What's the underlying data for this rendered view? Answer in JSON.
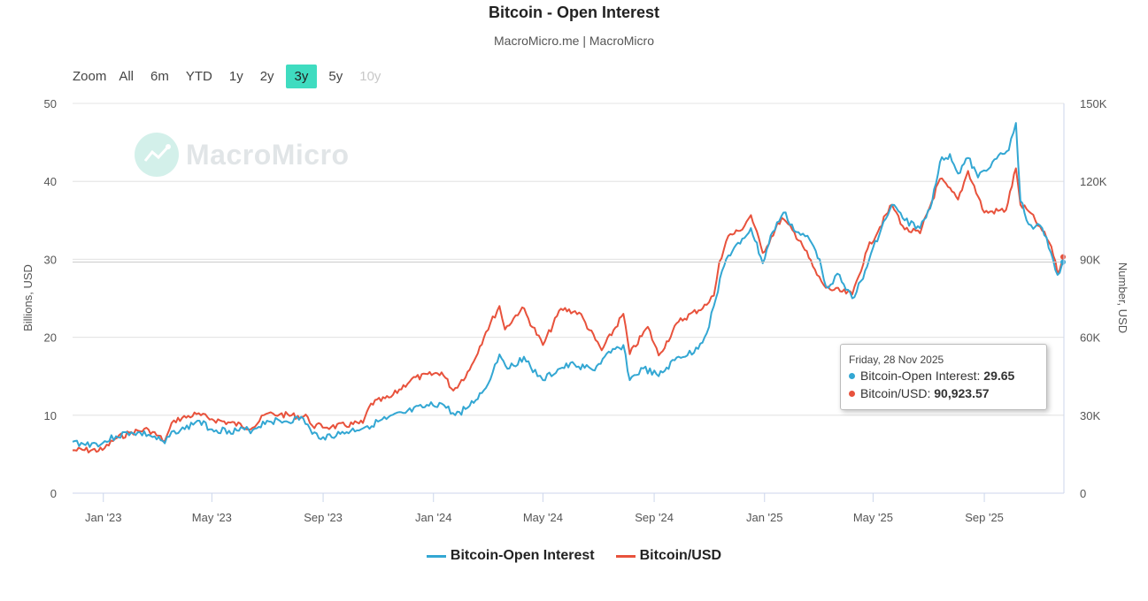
{
  "header": {
    "title": "Bitcoin - Open Interest",
    "subtitle": "MacroMicro.me | MacroMicro"
  },
  "zoom": {
    "label": "Zoom",
    "buttons": [
      {
        "label": "All",
        "state": "normal"
      },
      {
        "label": "6m",
        "state": "normal"
      },
      {
        "label": "YTD",
        "state": "normal"
      },
      {
        "label": "1y",
        "state": "normal"
      },
      {
        "label": "2y",
        "state": "normal"
      },
      {
        "label": "3y",
        "state": "active"
      },
      {
        "label": "5y",
        "state": "normal"
      },
      {
        "label": "10y",
        "state": "disabled"
      }
    ]
  },
  "watermark": {
    "text": "MacroMicro"
  },
  "tooltip": {
    "date": "Friday, 28 Nov 2025",
    "rows": [
      {
        "label": "Bitcoin-Open Interest:",
        "value": "29.65"
      },
      {
        "label": "Bitcoin/USD:",
        "value": "90,923.57"
      }
    ]
  },
  "colors": {
    "open_interest": "#33a7d3",
    "btc_usd": "#e8523c",
    "zoom_active": "#3fdcc0"
  },
  "chart_data": {
    "type": "line",
    "title": "Bitcoin - Open Interest",
    "left_axis": {
      "label": "Billions, USD",
      "min": 0,
      "max": 50,
      "ticks": [
        0,
        10,
        20,
        30,
        40,
        50
      ],
      "tick_labels": [
        "0",
        "10",
        "20",
        "30",
        "40",
        "50"
      ]
    },
    "right_axis": {
      "label": "Number, USD",
      "min": 0,
      "max": 150000,
      "ticks": [
        0,
        30000,
        60000,
        90000,
        120000,
        150000
      ],
      "tick_labels": [
        "0",
        "30K",
        "60K",
        "90K",
        "120K",
        "150K"
      ]
    },
    "x_range": [
      "2022-11-28",
      "2025-11-28"
    ],
    "x_ticks": [
      {
        "date": "2023-01-01",
        "label": "Jan '23"
      },
      {
        "date": "2023-05-01",
        "label": "May '23"
      },
      {
        "date": "2023-09-01",
        "label": "Sep '23"
      },
      {
        "date": "2024-01-01",
        "label": "Jan '24"
      },
      {
        "date": "2024-05-01",
        "label": "May '24"
      },
      {
        "date": "2024-09-01",
        "label": "Sep '24"
      },
      {
        "date": "2025-01-01",
        "label": "Jan '25"
      },
      {
        "date": "2025-05-01",
        "label": "May '25"
      },
      {
        "date": "2025-09-01",
        "label": "Sep '25"
      }
    ],
    "grid": true,
    "legend_position": "bottom",
    "series": [
      {
        "name": "Bitcoin-Open Interest",
        "axis": "left",
        "color": "#33a7d3",
        "points": [
          [
            "2022-11-28",
            6.6
          ],
          [
            "2022-12-10",
            6.3
          ],
          [
            "2022-12-31",
            6.4
          ],
          [
            "2023-01-15",
            7.3
          ],
          [
            "2023-02-01",
            7.8
          ],
          [
            "2023-02-20",
            7.5
          ],
          [
            "2023-03-10",
            6.4
          ],
          [
            "2023-03-20",
            8.0
          ],
          [
            "2023-04-01",
            8.2
          ],
          [
            "2023-04-15",
            9.3
          ],
          [
            "2023-05-01",
            8.2
          ],
          [
            "2023-05-20",
            8.0
          ],
          [
            "2023-06-15",
            8.1
          ],
          [
            "2023-07-01",
            9.3
          ],
          [
            "2023-07-20",
            9.2
          ],
          [
            "2023-08-10",
            9.6
          ],
          [
            "2023-08-20",
            7.6
          ],
          [
            "2023-09-01",
            7.2
          ],
          [
            "2023-09-20",
            7.6
          ],
          [
            "2023-10-20",
            8.6
          ],
          [
            "2023-11-10",
            9.5
          ],
          [
            "2023-12-01",
            10.3
          ],
          [
            "2023-12-20",
            11.0
          ],
          [
            "2024-01-10",
            11.5
          ],
          [
            "2024-01-25",
            10.0
          ],
          [
            "2024-02-10",
            11.2
          ],
          [
            "2024-02-28",
            13.5
          ],
          [
            "2024-03-14",
            17.8
          ],
          [
            "2024-03-25",
            16.0
          ],
          [
            "2024-04-10",
            17.5
          ],
          [
            "2024-04-25",
            15.0
          ],
          [
            "2024-05-01",
            14.5
          ],
          [
            "2024-05-20",
            16.0
          ],
          [
            "2024-06-05",
            16.5
          ],
          [
            "2024-06-25",
            15.8
          ],
          [
            "2024-07-15",
            18.0
          ],
          [
            "2024-07-29",
            19.0
          ],
          [
            "2024-08-05",
            14.5
          ],
          [
            "2024-08-20",
            16.0
          ],
          [
            "2024-09-06",
            15.0
          ],
          [
            "2024-09-28",
            17.5
          ],
          [
            "2024-10-15",
            18.0
          ],
          [
            "2024-10-29",
            20.5
          ],
          [
            "2024-11-06",
            24.0
          ],
          [
            "2024-11-15",
            28.5
          ],
          [
            "2024-11-22",
            30.5
          ],
          [
            "2024-12-05",
            32.0
          ],
          [
            "2024-12-17",
            34.0
          ],
          [
            "2024-12-30",
            29.5
          ],
          [
            "2025-01-10",
            33.5
          ],
          [
            "2025-01-22",
            36.0
          ],
          [
            "2025-02-05",
            33.5
          ],
          [
            "2025-02-20",
            32.5
          ],
          [
            "2025-03-03",
            30.0
          ],
          [
            "2025-03-10",
            26.5
          ],
          [
            "2025-03-25",
            28.0
          ],
          [
            "2025-04-08",
            25.0
          ],
          [
            "2025-04-20",
            27.5
          ],
          [
            "2025-05-01",
            31.5
          ],
          [
            "2025-05-22",
            37.0
          ],
          [
            "2025-06-05",
            35.0
          ],
          [
            "2025-06-22",
            34.0
          ],
          [
            "2025-07-03",
            36.5
          ],
          [
            "2025-07-14",
            42.5
          ],
          [
            "2025-07-25",
            43.5
          ],
          [
            "2025-08-03",
            41.0
          ],
          [
            "2025-08-14",
            43.0
          ],
          [
            "2025-08-25",
            40.5
          ],
          [
            "2025-09-10",
            42.5
          ],
          [
            "2025-09-28",
            44.0
          ],
          [
            "2025-10-06",
            47.5
          ],
          [
            "2025-10-11",
            37.5
          ],
          [
            "2025-10-20",
            34.5
          ],
          [
            "2025-11-04",
            34.0
          ],
          [
            "2025-11-16",
            30.0
          ],
          [
            "2025-11-21",
            28.0
          ],
          [
            "2025-11-28",
            29.65
          ]
        ]
      },
      {
        "name": "Bitcoin/USD",
        "axis": "right",
        "color": "#e8523c",
        "points": [
          [
            "2022-11-28",
            16500
          ],
          [
            "2022-12-31",
            16600
          ],
          [
            "2023-01-14",
            20900
          ],
          [
            "2023-02-01",
            23500
          ],
          [
            "2023-02-20",
            24500
          ],
          [
            "2023-03-10",
            20100
          ],
          [
            "2023-03-20",
            28000
          ],
          [
            "2023-04-14",
            30400
          ],
          [
            "2023-05-01",
            28500
          ],
          [
            "2023-06-15",
            25200
          ],
          [
            "2023-06-30",
            30500
          ],
          [
            "2023-07-15",
            30300
          ],
          [
            "2023-08-15",
            29300
          ],
          [
            "2023-08-20",
            26000
          ],
          [
            "2023-09-10",
            25500
          ],
          [
            "2023-10-15",
            27000
          ],
          [
            "2023-10-24",
            34500
          ],
          [
            "2023-11-15",
            37000
          ],
          [
            "2023-12-08",
            44000
          ],
          [
            "2024-01-10",
            46500
          ],
          [
            "2024-01-23",
            39500
          ],
          [
            "2024-02-10",
            47500
          ],
          [
            "2024-02-28",
            62000
          ],
          [
            "2024-03-14",
            72000
          ],
          [
            "2024-03-20",
            63000
          ],
          [
            "2024-04-08",
            71500
          ],
          [
            "2024-05-01",
            57000
          ],
          [
            "2024-05-21",
            71000
          ],
          [
            "2024-06-10",
            69500
          ],
          [
            "2024-07-05",
            55000
          ],
          [
            "2024-07-29",
            69000
          ],
          [
            "2024-08-05",
            53500
          ],
          [
            "2024-08-25",
            64000
          ],
          [
            "2024-09-06",
            53000
          ],
          [
            "2024-09-28",
            66000
          ],
          [
            "2024-10-29",
            72500
          ],
          [
            "2024-11-06",
            76000
          ],
          [
            "2024-11-12",
            89000
          ],
          [
            "2024-11-22",
            99000
          ],
          [
            "2024-12-05",
            101000
          ],
          [
            "2024-12-17",
            107000
          ],
          [
            "2024-12-30",
            92500
          ],
          [
            "2025-01-20",
            106000
          ],
          [
            "2025-02-10",
            97000
          ],
          [
            "2025-02-28",
            84000
          ],
          [
            "2025-03-10",
            79000
          ],
          [
            "2025-04-08",
            76500
          ],
          [
            "2025-04-25",
            94000
          ],
          [
            "2025-05-22",
            111000
          ],
          [
            "2025-06-05",
            101500
          ],
          [
            "2025-06-22",
            100000
          ],
          [
            "2025-07-14",
            121000
          ],
          [
            "2025-08-03",
            113000
          ],
          [
            "2025-08-14",
            124000
          ],
          [
            "2025-09-01",
            108000
          ],
          [
            "2025-09-25",
            109000
          ],
          [
            "2025-10-06",
            125000
          ],
          [
            "2025-10-11",
            111000
          ],
          [
            "2025-10-20",
            108500
          ],
          [
            "2025-11-04",
            101000
          ],
          [
            "2025-11-14",
            95000
          ],
          [
            "2025-11-21",
            84500
          ],
          [
            "2025-11-28",
            90923.57
          ]
        ]
      }
    ],
    "tooltip_point": {
      "date": "2025-11-28",
      "open_interest": 29.65,
      "btc_usd": 90923.57
    }
  }
}
